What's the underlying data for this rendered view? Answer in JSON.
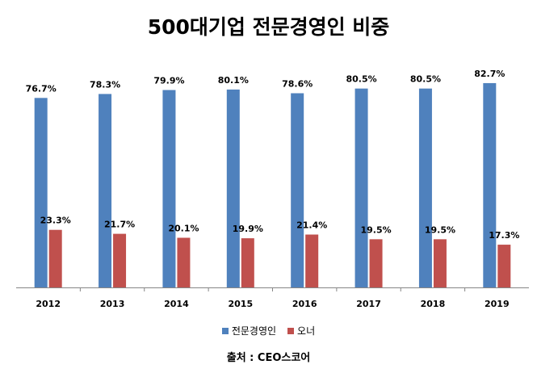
{
  "chart_data": {
    "type": "bar",
    "title": "500대기업 전문경영인 비중",
    "categories": [
      "2012",
      "2013",
      "2014",
      "2015",
      "2016",
      "2017",
      "2018",
      "2019"
    ],
    "series": [
      {
        "name": "전문경영인",
        "color": "#4f81bd",
        "values": [
          76.7,
          78.3,
          79.9,
          80.1,
          78.6,
          80.5,
          80.5,
          82.7
        ],
        "labels": [
          "76.7%",
          "78.3%",
          "79.9%",
          "80.1%",
          "78.6%",
          "80.5%",
          "80.5%",
          "82.7%"
        ]
      },
      {
        "name": "오너",
        "color": "#c0504d",
        "values": [
          23.3,
          21.7,
          20.1,
          19.9,
          21.4,
          19.5,
          19.5,
          17.3
        ],
        "labels": [
          "23.3%",
          "21.7%",
          "20.1%",
          "19.9%",
          "21.4%",
          "19.5%",
          "19.5%",
          "17.3%"
        ]
      }
    ],
    "ylim": [
      0,
      100
    ],
    "grid": false,
    "legend": "bottom"
  },
  "source": "출처 : CEO스코어"
}
